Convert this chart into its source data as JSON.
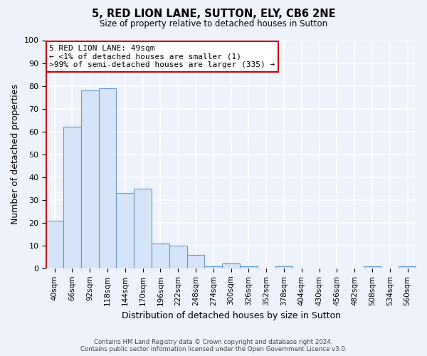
{
  "title": "5, RED LION LANE, SUTTON, ELY, CB6 2NE",
  "subtitle": "Size of property relative to detached houses in Sutton",
  "xlabel": "Distribution of detached houses by size in Sutton",
  "ylabel": "Number of detached properties",
  "bar_color": "#d6e4f7",
  "bar_edge_color": "#6699cc",
  "bg_color": "#eef2fb",
  "grid_color": "#ffffff",
  "categories": [
    "40sqm",
    "66sqm",
    "92sqm",
    "118sqm",
    "144sqm",
    "170sqm",
    "196sqm",
    "222sqm",
    "248sqm",
    "274sqm",
    "300sqm",
    "326sqm",
    "352sqm",
    "378sqm",
    "404sqm",
    "430sqm",
    "456sqm",
    "482sqm",
    "508sqm",
    "534sqm",
    "560sqm"
  ],
  "bar_heights": [
    21,
    62,
    78,
    79,
    33,
    35,
    11,
    10,
    6,
    1,
    2,
    1,
    0,
    1,
    0,
    0,
    0,
    0,
    1,
    0,
    1
  ],
  "annotation_lines": [
    "5 RED LION LANE: 49sqm",
    "← <1% of detached houses are smaller (1)",
    ">99% of semi-detached houses are larger (335) →"
  ],
  "footer_line1": "Contains HM Land Registry data © Crown copyright and database right 2024.",
  "footer_line2": "Contains public sector information licensed under the Open Government Licence v3.0.",
  "ylim": [
    0,
    100
  ],
  "yticks": [
    0,
    10,
    20,
    30,
    40,
    50,
    60,
    70,
    80,
    90,
    100
  ],
  "red_line_color": "#cc0000",
  "annotation_text_color": "#000000"
}
